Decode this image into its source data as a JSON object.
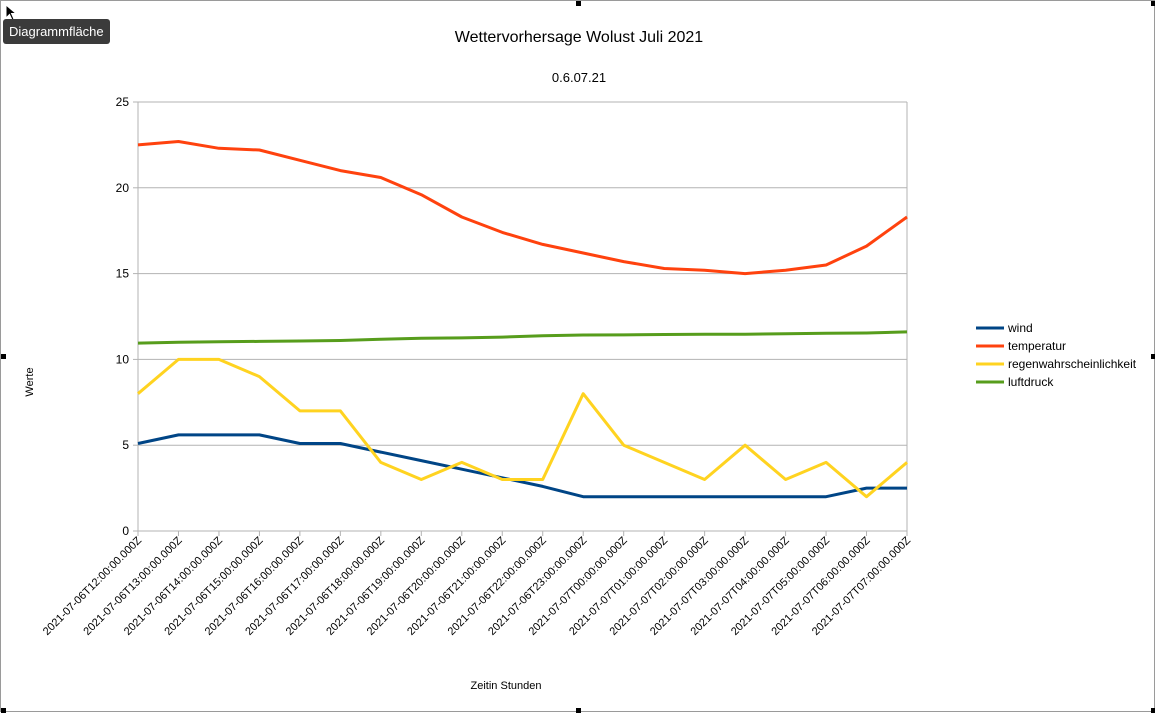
{
  "tooltip": "Diagrammfläche",
  "chart_data": {
    "type": "line",
    "title": "Wettervorhersage Wolust Juli 2021",
    "subtitle": "0.6.07.21",
    "xlabel": "Zeitin Stunden",
    "ylabel": "Werte",
    "ylim": [
      0,
      25
    ],
    "yticks": [
      0,
      5,
      10,
      15,
      20,
      25
    ],
    "grid": "horizontal",
    "legend_position": "right",
    "categories": [
      "2021-07-06T12:00:00.000Z",
      "2021-07-06T13:00:00.000Z",
      "2021-07-06T14:00:00.000Z",
      "2021-07-06T15:00:00.000Z",
      "2021-07-06T16:00:00.000Z",
      "2021-07-06T17:00:00.000Z",
      "2021-07-06T18:00:00.000Z",
      "2021-07-06T19:00:00.000Z",
      "2021-07-06T20:00:00.000Z",
      "2021-07-06T21:00:00.000Z",
      "2021-07-06T22:00:00.000Z",
      "2021-07-06T23:00:00.000Z",
      "2021-07-07T00:00:00.000Z",
      "2021-07-07T01:00:00.000Z",
      "2021-07-07T02:00:00.000Z",
      "2021-07-07T03:00:00.000Z",
      "2021-07-07T04:00:00.000Z",
      "2021-07-07T05:00:00.000Z",
      "2021-07-07T06:00:00.000Z",
      "2021-07-07T07:00:00.000Z"
    ],
    "series": [
      {
        "name": "wind",
        "color": "#004586",
        "values": [
          5.1,
          5.6,
          5.6,
          5.6,
          5.1,
          5.1,
          4.6,
          4.1,
          3.6,
          3.1,
          2.6,
          2.0,
          2.0,
          2.0,
          2.0,
          2.0,
          2.0,
          2.0,
          2.5,
          2.5
        ]
      },
      {
        "name": "temperatur",
        "color": "#ff420e",
        "values": [
          22.5,
          22.7,
          22.3,
          22.2,
          21.6,
          21.0,
          20.6,
          19.6,
          18.3,
          17.4,
          16.7,
          16.2,
          15.7,
          15.3,
          15.2,
          15.0,
          15.2,
          15.5,
          16.6,
          18.3
        ]
      },
      {
        "name": "regenwahrscheinlichkeit",
        "color": "#ffd320",
        "values": [
          8,
          10,
          10,
          9,
          7,
          7,
          4,
          3,
          4,
          3,
          3,
          8,
          5,
          4,
          3,
          5,
          3,
          4,
          2,
          4
        ]
      },
      {
        "name": "luftdruck",
        "color": "#579d1c",
        "values": [
          10.95,
          11.0,
          11.03,
          11.05,
          11.07,
          11.1,
          11.17,
          11.23,
          11.25,
          11.3,
          11.38,
          11.42,
          11.43,
          11.45,
          11.46,
          11.47,
          11.5,
          11.52,
          11.54,
          11.6
        ]
      }
    ]
  }
}
